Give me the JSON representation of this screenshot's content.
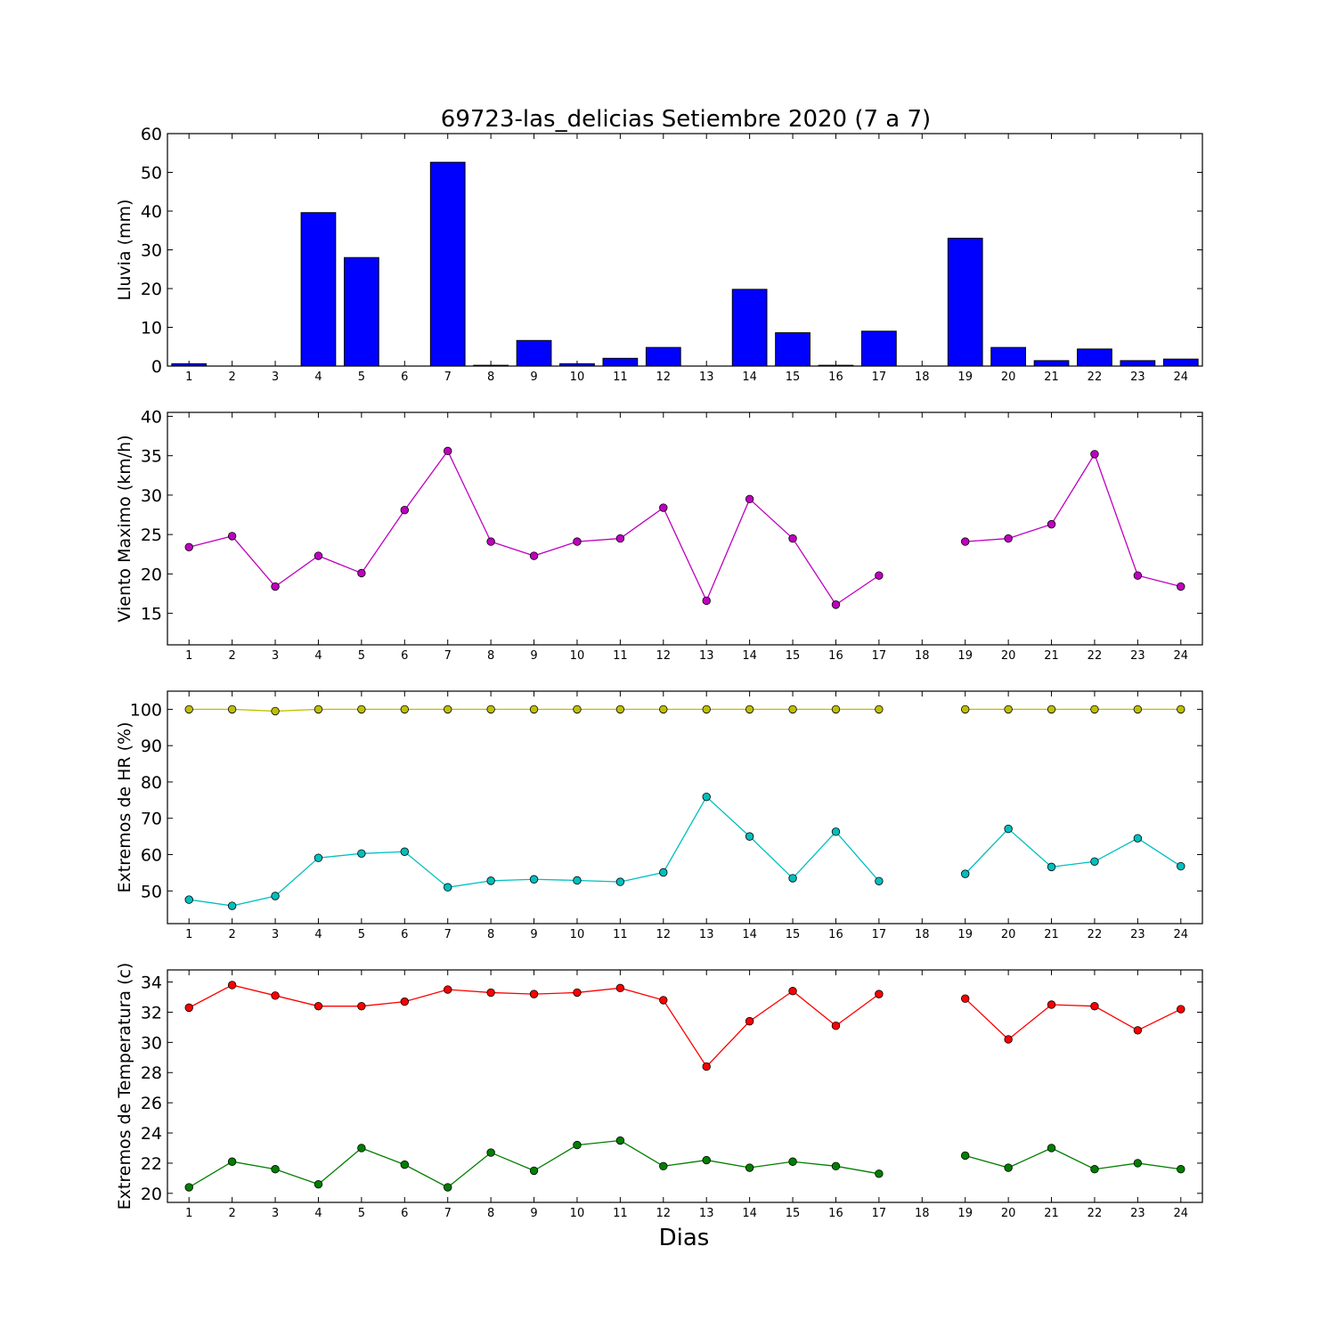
{
  "title": "69723-las_delicias Setiembre 2020  (7 a 7)",
  "xlabel": "Dias",
  "chart_data": [
    {
      "id": "lluvia",
      "type": "bar",
      "ylabel": "Lluvia (mm)",
      "ylim": [
        0,
        60
      ],
      "yticks": [
        0,
        10,
        20,
        30,
        40,
        50,
        60
      ],
      "categories": [
        "1",
        "2",
        "3",
        "4",
        "5",
        "6",
        "7",
        "8",
        "9",
        "10",
        "11",
        "12",
        "13",
        "14",
        "15",
        "16",
        "17",
        "18",
        "19",
        "20",
        "21",
        "22",
        "23",
        "24"
      ],
      "series": [
        {
          "color": "#0000ff",
          "values": [
            0.6,
            0,
            0,
            39.6,
            28.0,
            0,
            52.6,
            0.2,
            6.6,
            0.6,
            2.0,
            4.8,
            0,
            19.8,
            8.6,
            0.2,
            9.0,
            0,
            33.0,
            4.8,
            1.4,
            4.4,
            1.4,
            1.8
          ]
        }
      ]
    },
    {
      "id": "viento",
      "type": "line",
      "ylabel": "Viento Maximo (km/h)",
      "ylim": [
        11,
        40.5
      ],
      "yticks": [
        15,
        20,
        25,
        30,
        35,
        40
      ],
      "categories": [
        "1",
        "2",
        "3",
        "4",
        "5",
        "6",
        "7",
        "8",
        "9",
        "10",
        "11",
        "12",
        "13",
        "14",
        "15",
        "16",
        "17",
        "18",
        "19",
        "20",
        "21",
        "22",
        "23",
        "24"
      ],
      "series": [
        {
          "color": "#bf00bf",
          "values": [
            23.4,
            24.8,
            18.4,
            22.3,
            20.1,
            28.1,
            35.6,
            24.1,
            22.3,
            24.1,
            24.5,
            28.4,
            16.6,
            29.5,
            24.5,
            16.1,
            19.8,
            null,
            24.1,
            24.5,
            26.3,
            35.2,
            19.8,
            18.4
          ]
        }
      ]
    },
    {
      "id": "humedad",
      "type": "line",
      "ylabel": "Extremos de HR (%)",
      "ylim": [
        41,
        105
      ],
      "yticks": [
        50,
        60,
        70,
        80,
        90,
        100
      ],
      "categories": [
        "1",
        "2",
        "3",
        "4",
        "5",
        "6",
        "7",
        "8",
        "9",
        "10",
        "11",
        "12",
        "13",
        "14",
        "15",
        "16",
        "17",
        "18",
        "19",
        "20",
        "21",
        "22",
        "23",
        "24"
      ],
      "series": [
        {
          "color": "#bfbf00",
          "values": [
            100,
            100,
            99.5,
            100,
            100,
            100,
            100,
            100,
            100,
            100,
            100,
            100,
            100,
            100,
            100,
            100,
            100,
            null,
            100,
            100,
            100,
            100,
            100,
            100
          ]
        },
        {
          "color": "#00bfbf",
          "values": [
            47.6,
            45.9,
            48.6,
            59.1,
            60.3,
            60.8,
            51.0,
            52.8,
            53.2,
            52.9,
            52.5,
            55.1,
            75.9,
            65.0,
            53.5,
            66.3,
            52.7,
            null,
            54.7,
            67.1,
            56.6,
            58.1,
            64.5,
            56.8
          ]
        }
      ]
    },
    {
      "id": "temperatura",
      "type": "line",
      "ylabel": "Extremos de Temperatura (c)",
      "ylim": [
        19.4,
        34.8
      ],
      "yticks": [
        20,
        22,
        24,
        26,
        28,
        30,
        32,
        34
      ],
      "categories": [
        "1",
        "2",
        "3",
        "4",
        "5",
        "6",
        "7",
        "8",
        "9",
        "10",
        "11",
        "12",
        "13",
        "14",
        "15",
        "16",
        "17",
        "18",
        "19",
        "20",
        "21",
        "22",
        "23",
        "24"
      ],
      "series": [
        {
          "color": "#ff0000",
          "values": [
            32.3,
            33.8,
            33.1,
            32.4,
            32.4,
            32.7,
            33.5,
            33.3,
            33.2,
            33.3,
            33.6,
            32.8,
            28.4,
            31.4,
            33.4,
            31.1,
            33.2,
            null,
            32.9,
            30.2,
            32.5,
            32.4,
            30.8,
            32.2
          ]
        },
        {
          "color": "#007f00",
          "values": [
            20.4,
            22.1,
            21.6,
            20.6,
            23.0,
            21.9,
            20.4,
            22.7,
            21.5,
            23.2,
            23.5,
            21.8,
            22.2,
            21.7,
            22.1,
            21.8,
            21.3,
            null,
            22.5,
            21.7,
            23.0,
            21.6,
            22.0,
            21.6
          ]
        }
      ]
    }
  ]
}
